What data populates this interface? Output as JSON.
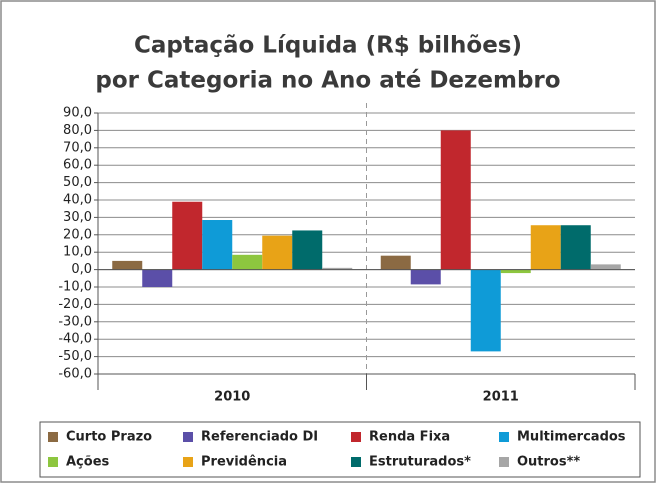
{
  "chart_data": {
    "type": "bar",
    "title": [
      "Captação Líquida (R$ bilhões)",
      "por Categoria no Ano até Dezembro"
    ],
    "categories": [
      "2010",
      "2011"
    ],
    "series": [
      {
        "name": "Curto Prazo",
        "color": "#8b6a43",
        "values": [
          5,
          8
        ]
      },
      {
        "name": "Referenciado DI",
        "color": "#5b4fa8",
        "values": [
          -10,
          -8.5
        ]
      },
      {
        "name": "Renda Fixa",
        "color": "#c1272d",
        "values": [
          39,
          80
        ]
      },
      {
        "name": "Multimercados",
        "color": "#0f9bd7",
        "values": [
          28.5,
          -47
        ]
      },
      {
        "name": "Ações",
        "color": "#8dc63f",
        "values": [
          8.5,
          -2
        ]
      },
      {
        "name": "Previdência",
        "color": "#e8a317",
        "values": [
          19.5,
          25.5
        ]
      },
      {
        "name": "Estruturados*",
        "color": "#006b6b",
        "values": [
          22.5,
          25.5
        ]
      },
      {
        "name": "Outros**",
        "color": "#a6a6a6",
        "values": [
          1,
          3
        ]
      }
    ],
    "ylim": [
      -60,
      90
    ],
    "yticks": [
      {
        "value": 90,
        "label": "90,0"
      },
      {
        "value": 80,
        "label": "80,0"
      },
      {
        "value": 70,
        "label": "70,0"
      },
      {
        "value": 60,
        "label": "60,0"
      },
      {
        "value": 50,
        "label": "50,0"
      },
      {
        "value": 40,
        "label": "40,0"
      },
      {
        "value": 30,
        "label": "30,0"
      },
      {
        "value": 20,
        "label": "20,0"
      },
      {
        "value": 10,
        "label": "10,0"
      },
      {
        "value": 0,
        "label": "0,0"
      },
      {
        "value": -10,
        "label": "-10,0"
      },
      {
        "value": -20,
        "label": "-20,0"
      },
      {
        "value": -30,
        "label": "-30,0"
      },
      {
        "value": -40,
        "label": "-40,0"
      },
      {
        "value": -50,
        "label": "-50,0"
      },
      {
        "value": -60,
        "label": "-60,0"
      }
    ],
    "grid": true,
    "legend": "bottom"
  }
}
